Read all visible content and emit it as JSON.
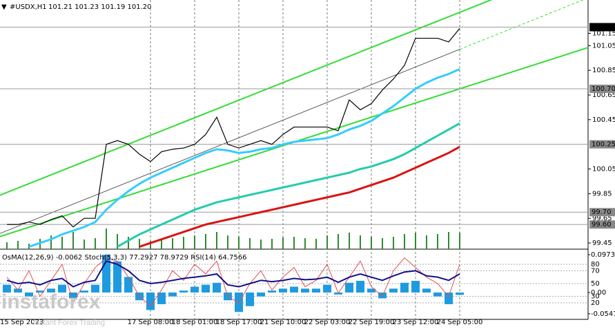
{
  "header": {
    "symbol": "#USDX,H1",
    "ohlc": "101.21 101.23 101.19 101.20"
  },
  "watermark": {
    "brand": "instaforex",
    "tagline": "Instant Forex Trading"
  },
  "chart_data": [
    {
      "type": "price",
      "categories": [
        "15 Sep 2023",
        null,
        null,
        null,
        null,
        null,
        null,
        null,
        null,
        null,
        null,
        null,
        null,
        "17 Sep 08:00",
        null,
        null,
        null,
        "18 Sep 01:00",
        null,
        null,
        null,
        "18 Sep 17:00",
        null,
        null,
        null,
        "21 Sep 10:00",
        null,
        null,
        null,
        "22 Sep 03:00",
        null,
        null,
        null,
        "22 Sep 19:00",
        null,
        null,
        null,
        "23 Sep 12:00",
        null,
        null,
        null,
        "24 Sep 05:00"
      ],
      "series": [
        {
          "color": "#000000",
          "width": 1.2,
          "values": [
            99.6,
            99.6,
            99.62,
            99.6,
            99.64,
            99.67,
            99.58,
            99.65,
            99.65,
            100.25,
            100.28,
            100.25,
            100.17,
            100.11,
            100.19,
            100.21,
            100.22,
            100.25,
            100.33,
            100.47,
            100.25,
            100.22,
            100.25,
            100.28,
            100.25,
            100.33,
            100.39,
            100.39,
            100.39,
            100.39,
            100.36,
            100.61,
            100.53,
            100.58,
            100.69,
            100.78,
            100.89,
            101.11,
            101.11,
            101.11,
            101.08,
            101.19
          ]
        },
        {
          "color": "#33ccff",
          "width": 3,
          "values": [
            null,
            null,
            99.42,
            99.45,
            99.48,
            99.52,
            99.55,
            99.58,
            99.62,
            99.72,
            99.8,
            99.87,
            99.93,
            99.98,
            100.02,
            100.06,
            100.1,
            100.14,
            100.18,
            100.21,
            100.2,
            100.18,
            100.19,
            100.21,
            100.22,
            100.25,
            100.27,
            100.28,
            100.29,
            100.3,
            100.33,
            100.37,
            100.4,
            100.44,
            100.5,
            100.56,
            100.63,
            100.7,
            100.75,
            100.79,
            100.82,
            100.86
          ]
        },
        {
          "color": "#22ccaa",
          "width": 3,
          "values": [
            null,
            null,
            null,
            null,
            null,
            null,
            null,
            null,
            null,
            null,
            99.42,
            99.47,
            99.52,
            99.56,
            99.6,
            99.64,
            99.68,
            99.72,
            99.75,
            99.78,
            99.8,
            99.82,
            99.84,
            99.86,
            99.88,
            99.9,
            99.92,
            99.94,
            99.96,
            99.98,
            100.0,
            100.02,
            100.05,
            100.07,
            100.1,
            100.13,
            100.17,
            100.22,
            100.27,
            100.32,
            100.37,
            100.42
          ]
        },
        {
          "color": "#dd1111",
          "width": 3,
          "values": [
            null,
            null,
            null,
            null,
            null,
            null,
            null,
            null,
            null,
            null,
            null,
            null,
            99.42,
            99.45,
            99.48,
            99.51,
            99.54,
            99.57,
            99.6,
            99.62,
            99.64,
            99.66,
            99.68,
            99.7,
            99.72,
            99.74,
            99.76,
            99.78,
            99.8,
            99.82,
            99.84,
            99.86,
            99.89,
            99.92,
            99.95,
            99.98,
            100.02,
            100.06,
            100.1,
            100.14,
            100.18,
            100.23
          ]
        }
      ],
      "volume": {
        "color": "#2e8b2e",
        "values": [
          10,
          12,
          8,
          15,
          20,
          18,
          25,
          14,
          16,
          30,
          22,
          18,
          15,
          12,
          14,
          16,
          18,
          20,
          22,
          25,
          20,
          18,
          16,
          14,
          15,
          17,
          18,
          16,
          15,
          20,
          22,
          24,
          20,
          18,
          16,
          18,
          22,
          24,
          20,
          22,
          25,
          24
        ]
      },
      "trend_lines": [
        {
          "color": "#33dd33",
          "width": 2,
          "start": [
            0,
            99.86
          ],
          "end": [
            41,
            101.32
          ]
        },
        {
          "color": "#33dd33",
          "width": 2,
          "start": [
            0,
            99.52
          ],
          "end": [
            41,
            100.7
          ]
        },
        {
          "color": "#333333",
          "width": 0.8,
          "start": [
            0,
            99.55
          ],
          "end": [
            41,
            101.02
          ],
          "dashed_extension": true,
          "extension_color": "#33dd33"
        }
      ],
      "levels": [
        {
          "value": 101.2,
          "label": "101.20",
          "current": true
        },
        {
          "value": 100.7,
          "label": "100.70"
        },
        {
          "value": 100.25
        },
        {
          "value": 99.7,
          "label": "99.70"
        },
        {
          "value": 99.6,
          "label": "99.60"
        }
      ],
      "ylim": [
        99.4,
        101.42
      ],
      "yticks": [
        101.15,
        101.05,
        100.85,
        100.65,
        100.45,
        100.05,
        99.85,
        99.65,
        99.45
      ],
      "grid": true
    },
    {
      "type": "oscillator",
      "title": "OsMA(12,26,9) -0.0062  Stoch(5,3,3) 77.2927 78.9729  RSI(14) 64.7566",
      "series": [
        {
          "color": "#e05050",
          "width": 1,
          "values": [
            60,
            40,
            70,
            30,
            55,
            80,
            20,
            50,
            75,
            90,
            85,
            60,
            30,
            15,
            40,
            70,
            55,
            80,
            65,
            85,
            30,
            20,
            50,
            70,
            40,
            60,
            75,
            45,
            55,
            80,
            35,
            60,
            85,
            45,
            30,
            70,
            90,
            75,
            60,
            50,
            30,
            80
          ]
        },
        {
          "color": "#10108a",
          "width": 2,
          "values": [
            55,
            50,
            52,
            48,
            55,
            58,
            45,
            52,
            55,
            85,
            80,
            70,
            55,
            50,
            52,
            55,
            58,
            60,
            62,
            65,
            48,
            45,
            50,
            55,
            53,
            55,
            58,
            56,
            57,
            60,
            52,
            60,
            65,
            60,
            55,
            62,
            68,
            70,
            62,
            60,
            55,
            65
          ]
        },
        {
          "color": "#1e9be0",
          "axis": "y2",
          "values": [
            0.02,
            0.01,
            -0.01,
            0.005,
            0.01,
            0.02,
            -0.015,
            0.005,
            0.02,
            0.097,
            0.08,
            0.04,
            -0.02,
            -0.045,
            -0.03,
            -0.01,
            0.005,
            0.015,
            0.02,
            0.025,
            -0.02,
            -0.05,
            -0.035,
            -0.01,
            0.005,
            0.01,
            0.015,
            0.01,
            0.01,
            0.02,
            -0.005,
            0.025,
            0.03,
            0.01,
            -0.015,
            0.01,
            0.025,
            0.03,
            0.01,
            -0.01,
            -0.03,
            -0.006
          ]
        }
      ],
      "ylim": [
        -3.6,
        99.3
      ],
      "yticks": [
        80,
        70,
        50,
        30,
        20
      ],
      "y2lim": [
        -0.0655,
        0.1044
      ],
      "y2ticks": [
        0.0973,
        {
          "value": 0,
          "label": "0.00"
        },
        -0.0547
      ]
    }
  ]
}
